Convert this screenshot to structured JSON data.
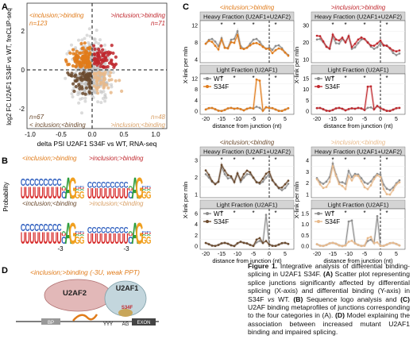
{
  "panel_labels": {
    "a": "A",
    "b": "B",
    "c": "C",
    "d": "D"
  },
  "caption": {
    "fig": "Figure 1.",
    "t1": " Integrative analysis of differential binding-splicing in U2AF1 S34F. ",
    "la": "(A)",
    "ta": " Scatter plot representing splice junctions significantly affected by differential splicing (X-axis) and differential binding (Y-axis) in S34F ",
    "vs": "vs",
    "ta2": " WT. ",
    "lb": "(B)",
    "tb": " Sequence logo analysis and ",
    "lc": "(C)",
    "tc": " U2AF binding metaprofiles of junctions corresponding to the four categories in (A). ",
    "ld": "(D)",
    "td": " Model explaining the association between increased mutant U2AF1 binding and impaired splicing."
  },
  "panel_a": {
    "q_tl": "<inclusion;>binding",
    "n_tl": "n=123",
    "q_tr": ">inclusion;>binding",
    "n_tr": "n=71",
    "q_bl": "< inclusion;<binding",
    "n_bl": "n=67",
    "q_br": ">inclusion;<binding",
    "n_br": "n=48",
    "ylabel": "log2 FC U2AF1 S34F vs WT, freCLIP-seq",
    "xlabel": "delta PSI U2AF1 S34F vs WT, RNA-seq",
    "xticks": [
      "-1.0",
      "-0.5",
      "0.0",
      "0.5",
      "1.0"
    ],
    "yticks": [
      "2",
      "0",
      "-2"
    ],
    "colors": {
      "tl": "#e07b1a",
      "tr": "#c0272d",
      "bl": "#6b4a2e",
      "br": "#e8b98a",
      "bg": "#bdbdbd"
    }
  },
  "panel_b": {
    "ylabel": "Probability",
    "titles": [
      "<inclusion;>binding",
      ">inclusion;>binding",
      "<inclusion;<binding",
      ">inclusion;<binding"
    ],
    "tick": "-3"
  },
  "panel_c": {
    "heavy": "Heavy Fraction (U2AF1+U2AF2)",
    "light": "Light Fraction (U2AF1)",
    "ylabel": "X-link per mln",
    "xlabel": "distance from junction (nt)",
    "xticks": [
      "-20",
      "-15",
      "-10",
      "-5",
      "0",
      "5"
    ],
    "wt": "WT",
    "mut": "S34F",
    "quads": [
      {
        "title": "<inclusion;>binding",
        "color": "#e07b1a"
      },
      {
        "title": ">inclusion;>binding",
        "color": "#c0272d"
      },
      {
        "title": "<inclusion;<binding",
        "color": "#6b4a2e"
      },
      {
        "title": ">inclusion;<binding",
        "color": "#e8b98a"
      }
    ],
    "yticks": [
      {
        "heavy": [
          "12",
          "8",
          "4"
        ],
        "light": [
          "12",
          "8",
          "4",
          "0"
        ]
      },
      {
        "heavy": [
          "30",
          "20",
          "10"
        ],
        "light": [
          "15",
          "10",
          "5",
          "0"
        ]
      },
      {
        "heavy": [
          "3",
          "2",
          "1"
        ],
        "light": [
          "6",
          "4",
          "2",
          "0"
        ]
      },
      {
        "heavy": [
          "4",
          "3",
          "2",
          "1"
        ],
        "light": [
          "1.5",
          "1.0",
          "0.5",
          "0.0"
        ]
      }
    ]
  },
  "panel_d": {
    "title": "<inclusion;>binding (-3U, weak PPT)",
    "u2af2": "U2AF2",
    "u2af1": "U2AF1",
    "s34f": "S34F",
    "bp": "BP",
    "yyy": "YYY",
    "ag": "AG",
    "exon": "EXON"
  }
}
